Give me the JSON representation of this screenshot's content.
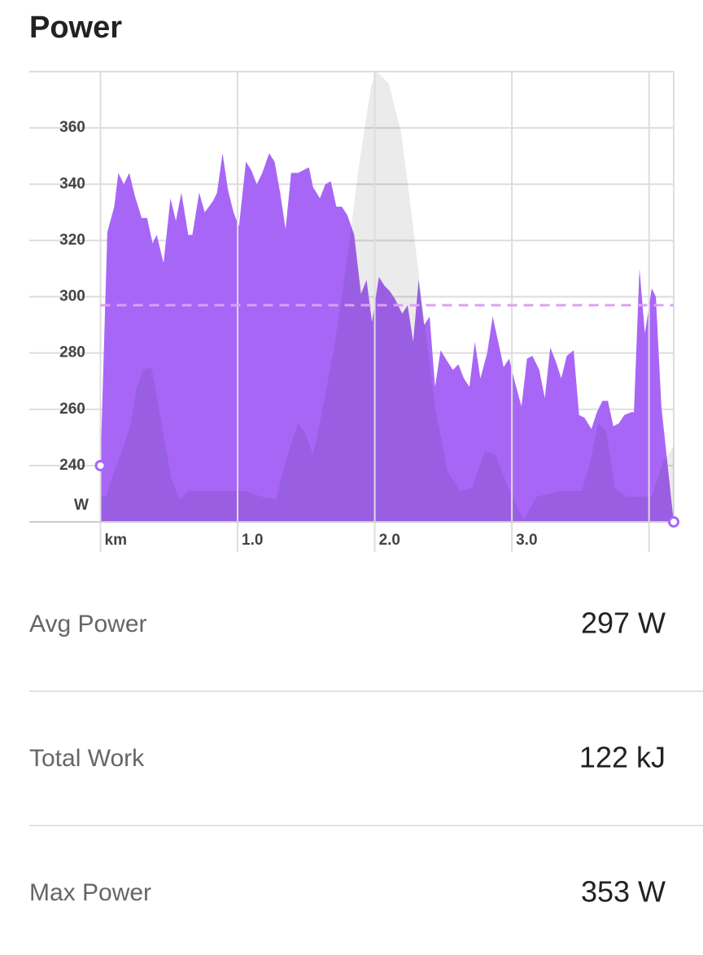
{
  "header": {
    "title": "Power"
  },
  "chart_data": {
    "type": "area",
    "ylabel": "W",
    "xlim": [
      0,
      4.18
    ],
    "ylim": [
      220,
      380
    ],
    "xticks": [
      {
        "value": 0,
        "label": "km"
      },
      {
        "value": 1,
        "label": "1.0"
      },
      {
        "value": 2,
        "label": "2.0"
      },
      {
        "value": 3,
        "label": "3.0"
      },
      {
        "value": 4,
        "label": null
      }
    ],
    "yticks": [
      240,
      260,
      280,
      300,
      320,
      340,
      360
    ],
    "grid": true,
    "avg_line": {
      "value": 297,
      "color": "#dca0f7"
    },
    "series": [
      {
        "color": "#a866f7",
        "x": [
          0,
          0.05,
          0.1,
          0.13,
          0.17,
          0.21,
          0.25,
          0.3,
          0.34,
          0.38,
          0.41,
          0.46,
          0.51,
          0.55,
          0.59,
          0.64,
          0.67,
          0.72,
          0.76,
          0.82,
          0.85,
          0.89,
          0.93,
          0.97,
          1.01,
          1.06,
          1.1,
          1.14,
          1.18,
          1.23,
          1.27,
          1.31,
          1.35,
          1.39,
          1.44,
          1.48,
          1.52,
          1.55,
          1.6,
          1.64,
          1.68,
          1.72,
          1.76,
          1.8,
          1.85,
          1.9,
          1.94,
          1.98,
          2.03,
          2.07,
          2.11,
          2.15,
          2.2,
          2.24,
          2.28,
          2.32,
          2.36,
          2.4,
          2.44,
          2.48,
          2.53,
          2.57,
          2.61,
          2.65,
          2.69,
          2.73,
          2.77,
          2.82,
          2.86,
          2.9,
          2.94,
          2.98,
          3.02,
          3.07,
          3.11,
          3.15,
          3.2,
          3.24,
          3.28,
          3.32,
          3.36,
          3.4,
          3.45,
          3.49,
          3.53,
          3.58,
          3.62,
          3.66,
          3.7,
          3.74,
          3.78,
          3.82,
          3.87,
          3.89,
          3.93,
          3.97,
          4.02,
          4.05,
          4.09,
          4.18
        ],
        "values": [
          240,
          323,
          332,
          344,
          340,
          344,
          336,
          328,
          328,
          319,
          322,
          312,
          335,
          327,
          337,
          322,
          322,
          337,
          330,
          334,
          337,
          351,
          338,
          330,
          325,
          348,
          345,
          340,
          344,
          351,
          348,
          337,
          324,
          344,
          344,
          345,
          346,
          339,
          335,
          340,
          341,
          332,
          332,
          329,
          322,
          301,
          306,
          291,
          307,
          304,
          302,
          299,
          294,
          297,
          284,
          306,
          290,
          293,
          268,
          281,
          277,
          274,
          276,
          271,
          268,
          284,
          271,
          280,
          293,
          284,
          275,
          278,
          270,
          261,
          278,
          279,
          274,
          264,
          282,
          277,
          271,
          279,
          281,
          258,
          257,
          253,
          259,
          263,
          263,
          254,
          255,
          258,
          259,
          259,
          310,
          287,
          303,
          300,
          261,
          220
        ]
      },
      {
        "color": "rgba(0,0,0,0.08)",
        "x": [
          0,
          0.04,
          0.1,
          0.17,
          0.22,
          0.26,
          0.31,
          0.37,
          0.41,
          0.47,
          0.52,
          0.58,
          0.64,
          0.81,
          1.05,
          1.17,
          1.28,
          1.33,
          1.39,
          1.44,
          1.49,
          1.55,
          1.61,
          1.7,
          1.79,
          1.88,
          1.97,
          2.01,
          2.1,
          2.19,
          2.26,
          2.35,
          2.44,
          2.53,
          2.62,
          2.71,
          2.8,
          2.88,
          2.95,
          3.04,
          3.09,
          3.18,
          3.36,
          3.51,
          3.57,
          3.63,
          3.69,
          3.75,
          3.84,
          4.02,
          4.1,
          4.18
        ],
        "values": [
          229,
          229,
          238,
          247,
          255,
          267,
          274,
          275,
          265,
          248,
          235,
          228,
          231,
          231,
          231,
          229,
          228,
          238,
          248,
          255,
          252,
          244,
          258,
          281,
          310,
          345,
          374,
          380,
          376,
          359,
          333,
          296,
          261,
          238,
          231,
          232,
          245,
          244,
          235,
          225,
          221,
          229,
          231,
          231,
          241,
          255,
          252,
          232,
          229,
          229,
          241,
          247
        ]
      }
    ]
  },
  "stats": [
    {
      "label": "Avg Power",
      "value": "297 W"
    },
    {
      "label": "Total Work",
      "value": "122 kJ"
    },
    {
      "label": "Max Power",
      "value": "353 W"
    }
  ]
}
